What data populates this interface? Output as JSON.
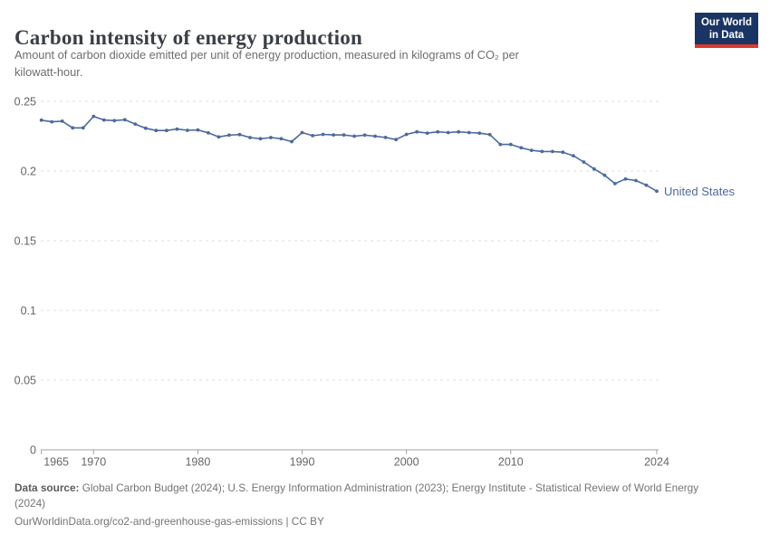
{
  "header": {
    "title": "Carbon intensity of energy production",
    "subtitle_line1": "Amount of carbon dioxide emitted per unit of energy production, measured in kilograms of CO₂ per",
    "subtitle_line2": "kilowatt-hour.",
    "logo": {
      "line1": "Our World",
      "line2": "in Data",
      "bg_color": "#1a3564",
      "accent_color": "#dc3a2f"
    }
  },
  "chart_data": {
    "type": "line",
    "title": "Carbon intensity of energy production",
    "xlabel": "",
    "ylabel": "kilograms of CO₂ per kilowatt-hour",
    "xlim": [
      1965,
      2024
    ],
    "ylim": [
      0,
      0.25
    ],
    "grid": "horizontal-dashed",
    "legend_position": "end-of-line-label",
    "x_ticks": [
      1965,
      1970,
      1980,
      1990,
      2000,
      2010,
      2024
    ],
    "y_ticks": [
      0,
      0.05,
      0.1,
      0.15,
      0.2,
      0.25
    ],
    "y_tick_labels": [
      "0",
      "0.05",
      "0.1",
      "0.15",
      "0.2",
      "0.25"
    ],
    "entity_label": "United States",
    "series": [
      {
        "name": "United States",
        "color": "#4C6A9C",
        "x": [
          1965,
          1966,
          1967,
          1968,
          1969,
          1970,
          1971,
          1972,
          1973,
          1974,
          1975,
          1976,
          1977,
          1978,
          1979,
          1980,
          1981,
          1982,
          1983,
          1984,
          1985,
          1986,
          1987,
          1988,
          1989,
          1990,
          1991,
          1992,
          1993,
          1994,
          1995,
          1996,
          1997,
          1998,
          1999,
          2000,
          2001,
          2002,
          2003,
          2004,
          2005,
          2006,
          2007,
          2008,
          2009,
          2010,
          2011,
          2012,
          2013,
          2014,
          2015,
          2016,
          2017,
          2018,
          2019,
          2020,
          2021,
          2022,
          2023,
          2024
        ],
        "values": [
          0.2365,
          0.2353,
          0.2358,
          0.231,
          0.231,
          0.2392,
          0.2366,
          0.2362,
          0.2368,
          0.2337,
          0.2307,
          0.2291,
          0.2291,
          0.2301,
          0.2292,
          0.2295,
          0.2274,
          0.2245,
          0.2258,
          0.2262,
          0.224,
          0.2232,
          0.224,
          0.2232,
          0.2211,
          0.2276,
          0.2254,
          0.2263,
          0.2259,
          0.2259,
          0.225,
          0.2258,
          0.225,
          0.2241,
          0.2226,
          0.2263,
          0.2281,
          0.2272,
          0.2281,
          0.2276,
          0.2281,
          0.2276,
          0.2272,
          0.2261,
          0.2191,
          0.2191,
          0.2167,
          0.2149,
          0.214,
          0.214,
          0.2135,
          0.211,
          0.2065,
          0.2015,
          0.197,
          0.191,
          0.1943,
          0.1932,
          0.1899,
          0.1855
        ]
      }
    ],
    "colors": {
      "grid": "#dcdcdc",
      "axis": "#a3a3a3",
      "tick_label": "#666666"
    }
  },
  "footer": {
    "source_label": "Data source:",
    "source_text": " Global Carbon Budget (2024); U.S. Energy Information Administration (2023); Energy Institute - Statistical Review of World Energy (2024)",
    "url_line": "OurWorldinData.org/co2-and-greenhouse-gas-emissions | CC BY"
  }
}
